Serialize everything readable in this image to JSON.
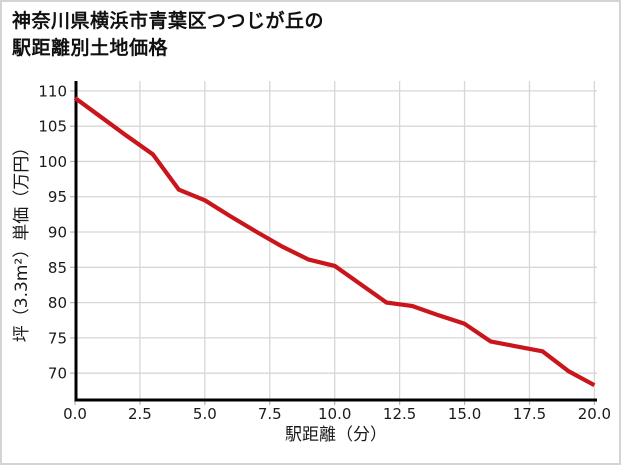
{
  "header": {
    "title_line1": "神奈川県横浜市青葉区つつじが丘の",
    "title_line2": "駅距離別土地価格"
  },
  "colors": {
    "line": "#c9151b",
    "grid": "#d7d7d7",
    "tick": "#b5b5b5",
    "axis": "#000000",
    "text": "#1a1a1a",
    "background": "#ffffff",
    "border": "#d4d4d4"
  },
  "chart_data": {
    "type": "line",
    "title": "神奈川県横浜市青葉区つつじが丘の駅距離別土地価格",
    "xlabel": "駅距離（分）",
    "ylabel": "坪（3.3m²）単価（万円）",
    "x": [
      0,
      1,
      2,
      3,
      4,
      5,
      6,
      7,
      8,
      9,
      10,
      11,
      12,
      13,
      14,
      15,
      16,
      17,
      18,
      19,
      20
    ],
    "y": [
      109,
      106.3,
      103.6,
      101,
      96,
      94.5,
      92.2,
      90,
      87.9,
      86.1,
      85.2,
      82.6,
      80,
      79.5,
      78.2,
      77,
      74.5,
      73.8,
      73.1,
      70.3,
      68.3
    ],
    "x_tick_values": [
      0,
      2.5,
      5,
      7.5,
      10,
      12.5,
      15,
      17.5,
      20
    ],
    "x_tick_labels": [
      "0.0",
      "2.5",
      "5.0",
      "7.5",
      "10.0",
      "12.5",
      "15.0",
      "17.5",
      "20.0"
    ],
    "y_tick_values": [
      70,
      75,
      80,
      85,
      90,
      95,
      100,
      105,
      110
    ],
    "y_tick_labels": [
      "70",
      "75",
      "80",
      "85",
      "90",
      "95",
      "100",
      "105",
      "110"
    ],
    "xlim": [
      0,
      20.1
    ],
    "ylim": [
      66.2,
      111.4
    ],
    "grid": true,
    "legend": false
  }
}
